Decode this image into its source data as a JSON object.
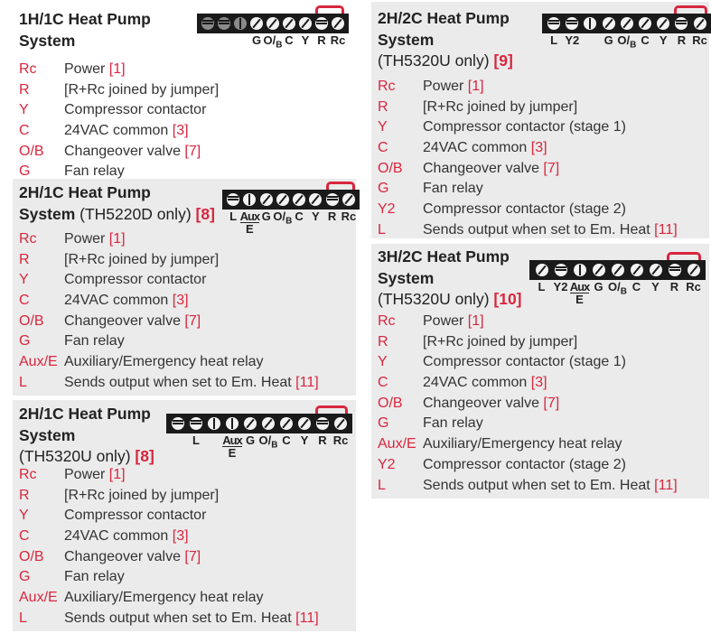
{
  "accent_color": "#d8263e",
  "panels": [
    {
      "title_bold": "1H/1C Heat Pump System",
      "title_extra": "",
      "ref": "",
      "terminals": [
        {
          "label": "",
          "screw": "horiz",
          "dim": true
        },
        {
          "label": "",
          "screw": "horiz",
          "dim": true
        },
        {
          "label": "",
          "screw": "vert",
          "dim": true
        },
        {
          "label": "G",
          "screw": "diag"
        },
        {
          "label": "O/B",
          "screw": "diag"
        },
        {
          "label": "C",
          "screw": "diag"
        },
        {
          "label": "Y",
          "screw": "diag"
        },
        {
          "label": "R",
          "screw": "horiz"
        },
        {
          "label": "Rc",
          "screw": "diag"
        }
      ],
      "rows": [
        {
          "t": "Rc",
          "d": "Power ",
          "r": "[1]"
        },
        {
          "t": "R",
          "d": "[R+Rc joined by jumper]",
          "r": ""
        },
        {
          "t": "Y",
          "d": "Compressor contactor",
          "r": ""
        },
        {
          "t": "C",
          "d": "24VAC common ",
          "r": "[3]"
        },
        {
          "t": "O/B",
          "d": "Changeover valve ",
          "r": "[7]"
        },
        {
          "t": "G",
          "d": "Fan relay",
          "r": ""
        }
      ]
    },
    {
      "title_bold": "2H/1C Heat Pump System",
      "title_extra": " (TH5220D only) ",
      "ref": "[8]",
      "terminals": [
        {
          "label": "L",
          "screw": "horiz"
        },
        {
          "label": "Aux/E",
          "screw": "vert"
        },
        {
          "label": "G",
          "screw": "diag"
        },
        {
          "label": "O/B",
          "screw": "diag"
        },
        {
          "label": "C",
          "screw": "diag"
        },
        {
          "label": "Y",
          "screw": "diag"
        },
        {
          "label": "R",
          "screw": "horiz"
        },
        {
          "label": "Rc",
          "screw": "diag"
        }
      ],
      "rows": [
        {
          "t": "Rc",
          "d": "Power ",
          "r": "[1]"
        },
        {
          "t": "R",
          "d": "[R+Rc joined by jumper]",
          "r": ""
        },
        {
          "t": "Y",
          "d": "Compressor contactor",
          "r": ""
        },
        {
          "t": "C",
          "d": "24VAC common ",
          "r": "[3]"
        },
        {
          "t": "O/B",
          "d": "Changeover valve ",
          "r": "[7]"
        },
        {
          "t": "G",
          "d": "Fan relay",
          "r": ""
        },
        {
          "t": "Aux/E",
          "d": "Auxiliary/Emergency heat relay",
          "r": ""
        },
        {
          "t": "L",
          "d": "Sends output when set to Em. Heat ",
          "r": "[11]"
        }
      ]
    },
    {
      "title_bold": "2H/1C Heat Pump System",
      "title_extra": "(TH5320U only) ",
      "ref": "[8]",
      "terminals": [
        {
          "label": "",
          "screw": "horiz"
        },
        {
          "label": "L",
          "screw": "horiz"
        },
        {
          "label": "",
          "screw": "vert"
        },
        {
          "label": "Aux/E",
          "screw": "vert"
        },
        {
          "label": "G",
          "screw": "diag"
        },
        {
          "label": "O/B",
          "screw": "diag"
        },
        {
          "label": "C",
          "screw": "diag"
        },
        {
          "label": "Y",
          "screw": "diag"
        },
        {
          "label": "R",
          "screw": "horiz"
        },
        {
          "label": "Rc",
          "screw": "diag"
        }
      ],
      "rows": [
        {
          "t": "Rc",
          "d": "Power ",
          "r": "[1]"
        },
        {
          "t": "R",
          "d": "[R+Rc joined by jumper]",
          "r": ""
        },
        {
          "t": "Y",
          "d": "Compressor contactor",
          "r": ""
        },
        {
          "t": "C",
          "d": "24VAC common ",
          "r": "[3]"
        },
        {
          "t": "O/B",
          "d": "Changeover valve ",
          "r": "[7]"
        },
        {
          "t": "G",
          "d": "Fan relay",
          "r": ""
        },
        {
          "t": "Aux/E",
          "d": "Auxiliary/Emergency heat relay",
          "r": ""
        },
        {
          "t": "L",
          "d": "Sends output when set to Em. Heat ",
          "r": "[11]"
        }
      ]
    },
    {
      "title_bold": "2H/2C Heat Pump System",
      "title_extra": "(TH5320U only) ",
      "ref": "[9]",
      "terminals": [
        {
          "label": "L",
          "screw": "horiz"
        },
        {
          "label": "Y2",
          "screw": "horiz"
        },
        {
          "label": "",
          "screw": "vert"
        },
        {
          "label": "G",
          "screw": "diag"
        },
        {
          "label": "O/B",
          "screw": "diag"
        },
        {
          "label": "C",
          "screw": "diag"
        },
        {
          "label": "Y",
          "screw": "diag"
        },
        {
          "label": "R",
          "screw": "horiz"
        },
        {
          "label": "Rc",
          "screw": "diag"
        }
      ],
      "rows": [
        {
          "t": "Rc",
          "d": "Power ",
          "r": "[1]"
        },
        {
          "t": "R",
          "d": "[R+Rc joined by jumper]",
          "r": ""
        },
        {
          "t": "Y",
          "d": "Compressor contactor (stage 1)",
          "r": ""
        },
        {
          "t": "C",
          "d": "24VAC common ",
          "r": "[3]"
        },
        {
          "t": "O/B",
          "d": "Changeover valve ",
          "r": "[7]"
        },
        {
          "t": "G",
          "d": "Fan relay",
          "r": ""
        },
        {
          "t": "Y2",
          "d": "Compressor contactor (stage 2)",
          "r": ""
        },
        {
          "t": "L",
          "d": "Sends output when set to Em. Heat ",
          "r": "[11]"
        }
      ]
    },
    {
      "title_bold": "3H/2C Heat Pump System",
      "title_extra": "(TH5320U only) ",
      "ref": "[10]",
      "terminals": [
        {
          "label": "L",
          "screw": "diag"
        },
        {
          "label": "Y2",
          "screw": "horiz"
        },
        {
          "label": "Aux/E",
          "screw": "vert"
        },
        {
          "label": "G",
          "screw": "diag"
        },
        {
          "label": "O/B",
          "screw": "diag"
        },
        {
          "label": "C",
          "screw": "diag"
        },
        {
          "label": "Y",
          "screw": "diag"
        },
        {
          "label": "R",
          "screw": "horiz"
        },
        {
          "label": "Rc",
          "screw": "diag"
        }
      ],
      "rows": [
        {
          "t": "Rc",
          "d": "Power ",
          "r": "[1]"
        },
        {
          "t": "R",
          "d": "[R+Rc joined by jumper]",
          "r": ""
        },
        {
          "t": "Y",
          "d": "Compressor contactor (stage 1)",
          "r": ""
        },
        {
          "t": "C",
          "d": "24VAC common ",
          "r": "[3]"
        },
        {
          "t": "O/B",
          "d": "Changeover valve ",
          "r": "[7]"
        },
        {
          "t": "G",
          "d": "Fan relay",
          "r": ""
        },
        {
          "t": "Aux/E",
          "d": "Auxiliary/Emergency heat relay",
          "r": ""
        },
        {
          "t": "Y2",
          "d": "Compressor contactor (stage 2)",
          "r": ""
        },
        {
          "t": "L",
          "d": "Sends output when set to Em. Heat ",
          "r": "[11]"
        }
      ]
    }
  ]
}
